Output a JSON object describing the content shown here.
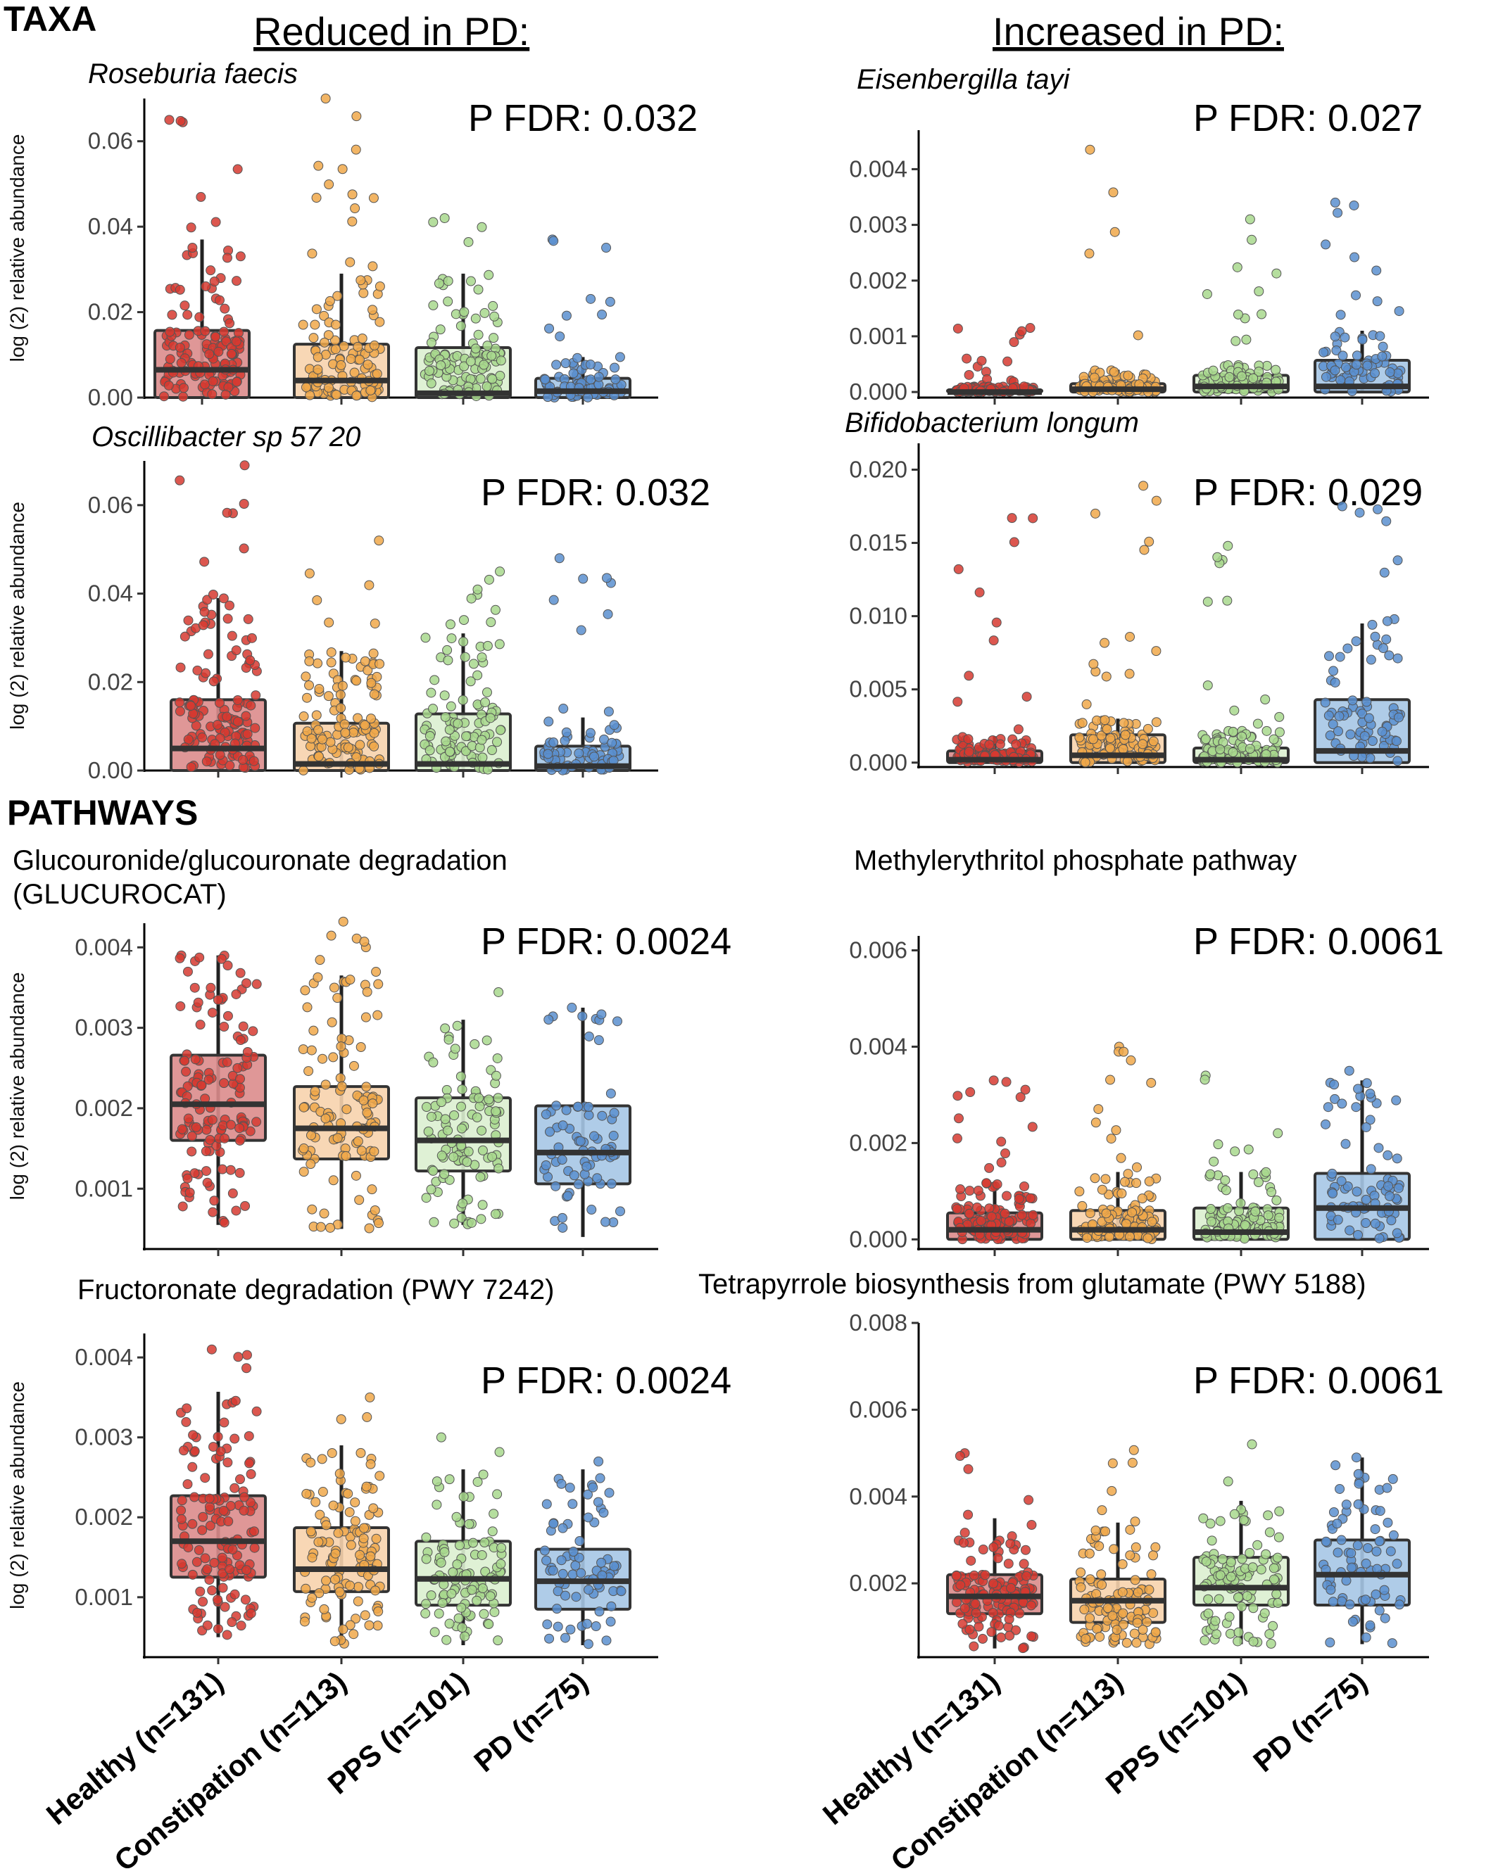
{
  "headings": {
    "taxa": "TAXA",
    "pathways": "PATHWAYS",
    "reduced": "Reduced in PD:",
    "increased": "Increased in PD:"
  },
  "y_axis_label": "log (2) relative abundance",
  "colors": {
    "Healthy": {
      "box": "#dc8c8c",
      "point": "#d63a30"
    },
    "Constipation": {
      "box": "#f7d3ad",
      "point": "#f0a84a"
    },
    "PPS": {
      "box": "#dcefd0",
      "point": "#a8d88d"
    },
    "PD": {
      "box": "#a6c6e6",
      "point": "#5a8fcf"
    }
  },
  "chart_data": [
    {
      "type": "box",
      "title": "Roseburia faecis",
      "title_style": "italic",
      "pfdr": "P FDR: 0.032",
      "categories": [
        "Healthy (n=131)",
        "Constipation (n=113)",
        "PPS (n=101)",
        "PD (n=75)"
      ],
      "n": [
        131,
        113,
        101,
        75
      ],
      "ylim": [
        0,
        0.07
      ],
      "yticks": [
        "0.00",
        "0.02",
        "0.04",
        "0.06"
      ],
      "ytick_values": [
        0,
        0.02,
        0.04,
        0.06
      ],
      "boxes": [
        {
          "q1": 0.0,
          "median": 0.0065,
          "q3": 0.0157,
          "whisker_low": 0.0,
          "whisker_high": 0.037,
          "max": 0.065
        },
        {
          "q1": 0.0,
          "median": 0.004,
          "q3": 0.0125,
          "whisker_low": 0.0,
          "whisker_high": 0.029,
          "max": 0.07
        },
        {
          "q1": 0.0,
          "median": 0.001,
          "q3": 0.0117,
          "whisker_low": 0.0,
          "whisker_high": 0.029,
          "max": 0.042
        },
        {
          "q1": 0.0,
          "median": 0.0015,
          "q3": 0.0045,
          "whisker_low": 0.0,
          "whisker_high": 0.0095,
          "max": 0.037
        }
      ]
    },
    {
      "type": "box",
      "title": "Eisenbergilla tayi",
      "title_style": "italic",
      "pfdr": "P FDR: 0.027",
      "categories": [
        "Healthy (n=131)",
        "Constipation (n=113)",
        "PPS (n=101)",
        "PD (n=75)"
      ],
      "n": [
        131,
        113,
        101,
        75
      ],
      "ylim": [
        -0.0001,
        0.0047
      ],
      "yticks": [
        "0.000",
        "0.001",
        "0.002",
        "0.003",
        "0.004"
      ],
      "ytick_values": [
        0,
        0.001,
        0.002,
        0.003,
        0.004
      ],
      "boxes": [
        {
          "q1": 0.0,
          "median": 0.0,
          "q3": 4e-05,
          "whisker_low": 0.0,
          "whisker_high": 0.0001,
          "max": 0.00115
        },
        {
          "q1": 0.0,
          "median": 5e-05,
          "q3": 0.00015,
          "whisker_low": 0.0,
          "whisker_high": 0.0004,
          "max": 0.00435
        },
        {
          "q1": 0.0,
          "median": 0.0001,
          "q3": 0.0003,
          "whisker_low": 0.0,
          "whisker_high": 0.0005,
          "max": 0.0031
        },
        {
          "q1": 0.0,
          "median": 0.0001,
          "q3": 0.00057,
          "whisker_low": 0.0,
          "whisker_high": 0.0011,
          "max": 0.0034
        }
      ]
    },
    {
      "type": "box",
      "title": "Oscillibacter sp 57 20",
      "title_style": "italic",
      "pfdr": "P FDR: 0.032",
      "categories": [
        "Healthy (n=131)",
        "Constipation (n=113)",
        "PPS (n=101)",
        "PD (n=75)"
      ],
      "n": [
        131,
        113,
        101,
        75
      ],
      "ylim": [
        0,
        0.07
      ],
      "yticks": [
        "0.00",
        "0.02",
        "0.04",
        "0.06"
      ],
      "ytick_values": [
        0,
        0.02,
        0.04,
        0.06
      ],
      "boxes": [
        {
          "q1": 0.0,
          "median": 0.005,
          "q3": 0.016,
          "whisker_low": 0.0,
          "whisker_high": 0.039,
          "max": 0.069
        },
        {
          "q1": 0.0,
          "median": 0.0015,
          "q3": 0.0107,
          "whisker_low": 0.0,
          "whisker_high": 0.027,
          "max": 0.052
        },
        {
          "q1": 0.0,
          "median": 0.0015,
          "q3": 0.0128,
          "whisker_low": 0.0,
          "whisker_high": 0.031,
          "max": 0.045
        },
        {
          "q1": 0.0,
          "median": 0.001,
          "q3": 0.0055,
          "whisker_low": 0.0,
          "whisker_high": 0.012,
          "max": 0.048
        }
      ]
    },
    {
      "type": "box",
      "title": "Bifidobacterium longum",
      "title_style": "italic",
      "pfdr": "P FDR: 0.029",
      "categories": [
        "Healthy (n=131)",
        "Constipation (n=113)",
        "PPS (n=101)",
        "PD (n=75)"
      ],
      "n": [
        131,
        113,
        101,
        75
      ],
      "ylim": [
        -0.0003,
        0.0218
      ],
      "yticks": [
        "0.000",
        "0.005",
        "0.010",
        "0.015",
        "0.020"
      ],
      "ytick_values": [
        0,
        0.005,
        0.01,
        0.015,
        0.02
      ],
      "boxes": [
        {
          "q1": 0.0,
          "median": 0.0002,
          "q3": 0.0008,
          "whisker_low": 0.0,
          "whisker_high": 0.0018,
          "max": 0.0167
        },
        {
          "q1": 0.0,
          "median": 0.0005,
          "q3": 0.0019,
          "whisker_low": 0.0,
          "whisker_high": 0.003,
          "max": 0.0189
        },
        {
          "q1": 0.0,
          "median": 0.0002,
          "q3": 0.001,
          "whisker_low": 0.0,
          "whisker_high": 0.0022,
          "max": 0.0148
        },
        {
          "q1": 0.0,
          "median": 0.0008,
          "q3": 0.0043,
          "whisker_low": 0.0,
          "whisker_high": 0.0095,
          "max": 0.0175
        }
      ]
    },
    {
      "type": "box",
      "title": "Glucouronide/glucouronate degradation (GLUCUROCAT)",
      "title_style": "normal",
      "pfdr": "P FDR: 0.0024",
      "categories": [
        "Healthy (n=131)",
        "Constipation (n=113)",
        "PPS (n=101)",
        "PD (n=75)"
      ],
      "n": [
        131,
        113,
        101,
        75
      ],
      "ylim": [
        0.00025,
        0.0043
      ],
      "yticks": [
        "0.001",
        "0.002",
        "0.003",
        "0.004"
      ],
      "ytick_values": [
        0.001,
        0.002,
        0.003,
        0.004
      ],
      "boxes": [
        {
          "q1": 0.0016,
          "median": 0.00205,
          "q3": 0.00266,
          "whisker_low": 0.00055,
          "whisker_high": 0.0039,
          "max": 0.0039
        },
        {
          "q1": 0.00137,
          "median": 0.00175,
          "q3": 0.00227,
          "whisker_low": 0.0005,
          "whisker_high": 0.00365,
          "max": 0.00432
        },
        {
          "q1": 0.00122,
          "median": 0.0016,
          "q3": 0.00213,
          "whisker_low": 0.00055,
          "whisker_high": 0.0031,
          "max": 0.0035
        },
        {
          "q1": 0.00106,
          "median": 0.00145,
          "q3": 0.00203,
          "whisker_low": 0.0004,
          "whisker_high": 0.00325,
          "max": 0.00325
        }
      ]
    },
    {
      "type": "box",
      "title": "Methylerythritol phosphate pathway",
      "title_style": "normal",
      "pfdr": "P FDR: 0.0061",
      "categories": [
        "Healthy (n=131)",
        "Constipation (n=113)",
        "PPS (n=101)",
        "PD (n=75)"
      ],
      "n": [
        131,
        113,
        101,
        75
      ],
      "ylim": [
        -0.0002,
        0.0063
      ],
      "yticks": [
        "0.000",
        "0.002",
        "0.004",
        "0.006"
      ],
      "ytick_values": [
        0,
        0.002,
        0.004,
        0.006
      ],
      "boxes": [
        {
          "q1": 0.0,
          "median": 0.0002,
          "q3": 0.00055,
          "whisker_low": 0.0,
          "whisker_high": 0.0012,
          "max": 0.0033
        },
        {
          "q1": 0.0,
          "median": 0.0002,
          "q3": 0.0006,
          "whisker_low": 0.0,
          "whisker_high": 0.0014,
          "max": 0.004
        },
        {
          "q1": 0.0,
          "median": 0.00015,
          "q3": 0.00065,
          "whisker_low": 0.0,
          "whisker_high": 0.0014,
          "max": 0.0034
        },
        {
          "q1": 0.0,
          "median": 0.00065,
          "q3": 0.00137,
          "whisker_low": 0.0,
          "whisker_high": 0.0033,
          "max": 0.0035
        }
      ]
    },
    {
      "type": "box",
      "title": "Fructoronate degradation (PWY 7242)",
      "title_style": "normal",
      "pfdr": "P FDR: 0.0024",
      "categories": [
        "Healthy (n=131)",
        "Constipation (n=113)",
        "PPS (n=101)",
        "PD (n=75)"
      ],
      "n": [
        131,
        113,
        101,
        75
      ],
      "ylim": [
        0.00025,
        0.0043
      ],
      "yticks": [
        "0.001",
        "0.002",
        "0.003",
        "0.004"
      ],
      "ytick_values": [
        0.001,
        0.002,
        0.003,
        0.004
      ],
      "boxes": [
        {
          "q1": 0.00125,
          "median": 0.0017,
          "q3": 0.00227,
          "whisker_low": 0.0005,
          "whisker_high": 0.00357,
          "max": 0.0041
        },
        {
          "q1": 0.00107,
          "median": 0.00135,
          "q3": 0.00187,
          "whisker_low": 0.0004,
          "whisker_high": 0.0029,
          "max": 0.0035
        },
        {
          "q1": 0.0009,
          "median": 0.00123,
          "q3": 0.0017,
          "whisker_low": 0.0004,
          "whisker_high": 0.0026,
          "max": 0.003
        },
        {
          "q1": 0.00085,
          "median": 0.0012,
          "q3": 0.0016,
          "whisker_low": 0.0004,
          "whisker_high": 0.0026,
          "max": 0.0028
        }
      ]
    },
    {
      "type": "box",
      "title": "Tetrapyrrole biosynthesis from glutamate (PWY 5188)",
      "title_style": "normal",
      "pfdr": "P FDR: 0.0061",
      "categories": [
        "Healthy (n=131)",
        "Constipation (n=113)",
        "PPS (n=101)",
        "PD (n=75)"
      ],
      "n": [
        131,
        113,
        101,
        75
      ],
      "ylim": [
        0.0003,
        0.008
      ],
      "yticks": [
        "0.002",
        "0.004",
        "0.006",
        "0.008"
      ],
      "ytick_values": [
        0.002,
        0.004,
        0.006,
        0.008
      ],
      "boxes": [
        {
          "q1": 0.0013,
          "median": 0.0017,
          "q3": 0.0022,
          "whisker_low": 0.0005,
          "whisker_high": 0.0035,
          "max": 0.005
        },
        {
          "q1": 0.0011,
          "median": 0.0016,
          "q3": 0.0021,
          "whisker_low": 0.0006,
          "whisker_high": 0.0034,
          "max": 0.0052
        },
        {
          "q1": 0.0015,
          "median": 0.0019,
          "q3": 0.0026,
          "whisker_low": 0.0006,
          "whisker_high": 0.0039,
          "max": 0.0054
        },
        {
          "q1": 0.0015,
          "median": 0.0022,
          "q3": 0.003,
          "whisker_low": 0.0006,
          "whisker_high": 0.0049,
          "max": 0.0049
        }
      ]
    }
  ]
}
